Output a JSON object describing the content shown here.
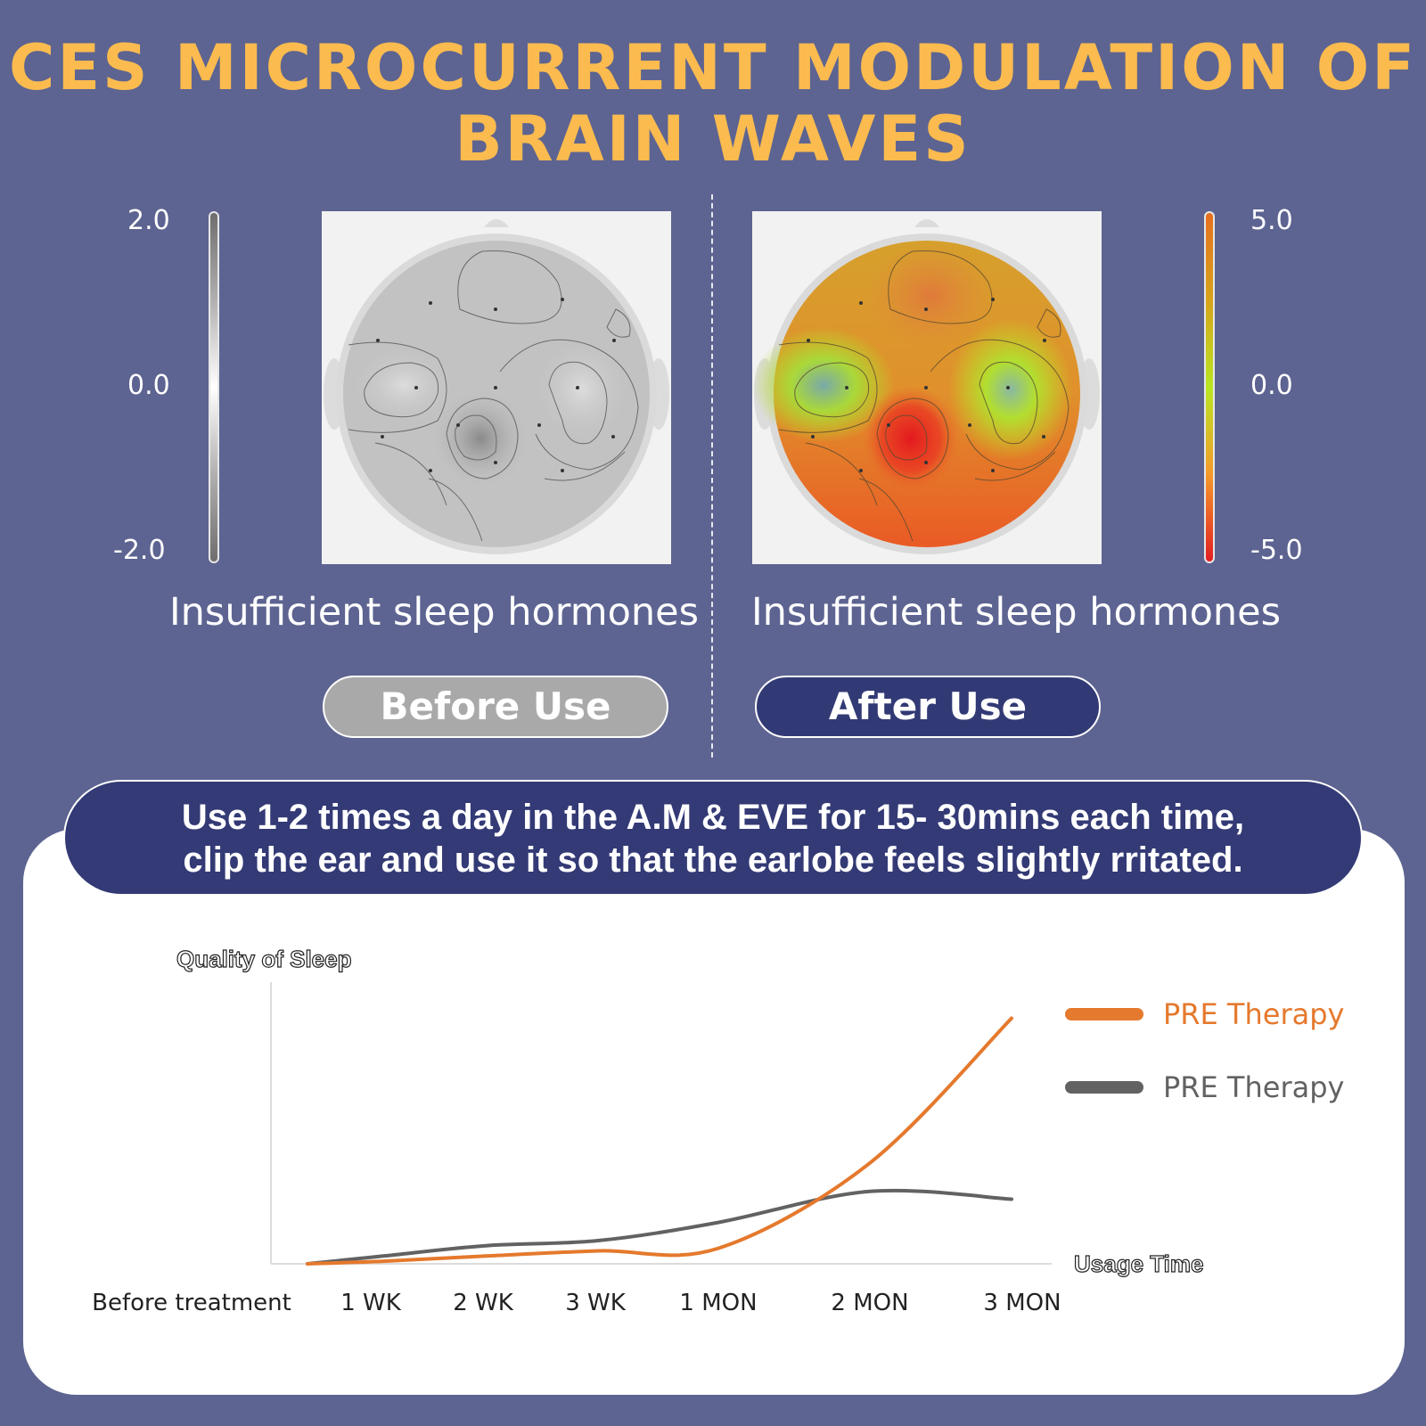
{
  "header": {
    "title_line1": "CES MICROCURRENT MODULATION OF",
    "title_line2": "BRAIN WAVES"
  },
  "before_panel": {
    "scale_max": "2.0",
    "scale_mid": "0.0",
    "scale_min": "-2.0",
    "caption": "Insufficient sleep hormones",
    "button_label": "Before Use",
    "color_high": "#6e6e6e",
    "color_mid": "#ffffff"
  },
  "after_panel": {
    "scale_max": "5.0",
    "scale_mid": "0.0",
    "scale_min": "-5.0",
    "caption": "Insufficient sleep hormones",
    "button_label": "After Use",
    "color_high": "#e5701f",
    "color_mid": "#b9e622",
    "color_low": "#e11e22"
  },
  "instructions": {
    "line1": "Use 1-2 times a day in the A.M & EVE for 15- 30mins each time,",
    "line2": "clip the ear and use it so that the earlobe feels slightly rritated."
  },
  "chart_data": {
    "type": "line",
    "ylabel": "Quality of Sleep",
    "xlabel": "Usage Time",
    "categories": [
      "Before treatment",
      "1 WK",
      "2 WK",
      "3 WK",
      "1 MON",
      "2 MON",
      "3 MON"
    ],
    "series": [
      {
        "name": "PRE Therapy",
        "color": "#e5792d",
        "values": [
          0,
          1,
          3,
          5,
          6,
          39,
          95
        ]
      },
      {
        "name": "PRE Therapy",
        "color": "#626262",
        "values": [
          0,
          3,
          7,
          9,
          16,
          28,
          25
        ]
      }
    ],
    "ylim": [
      0,
      100
    ],
    "grid": false,
    "legend": "right"
  }
}
